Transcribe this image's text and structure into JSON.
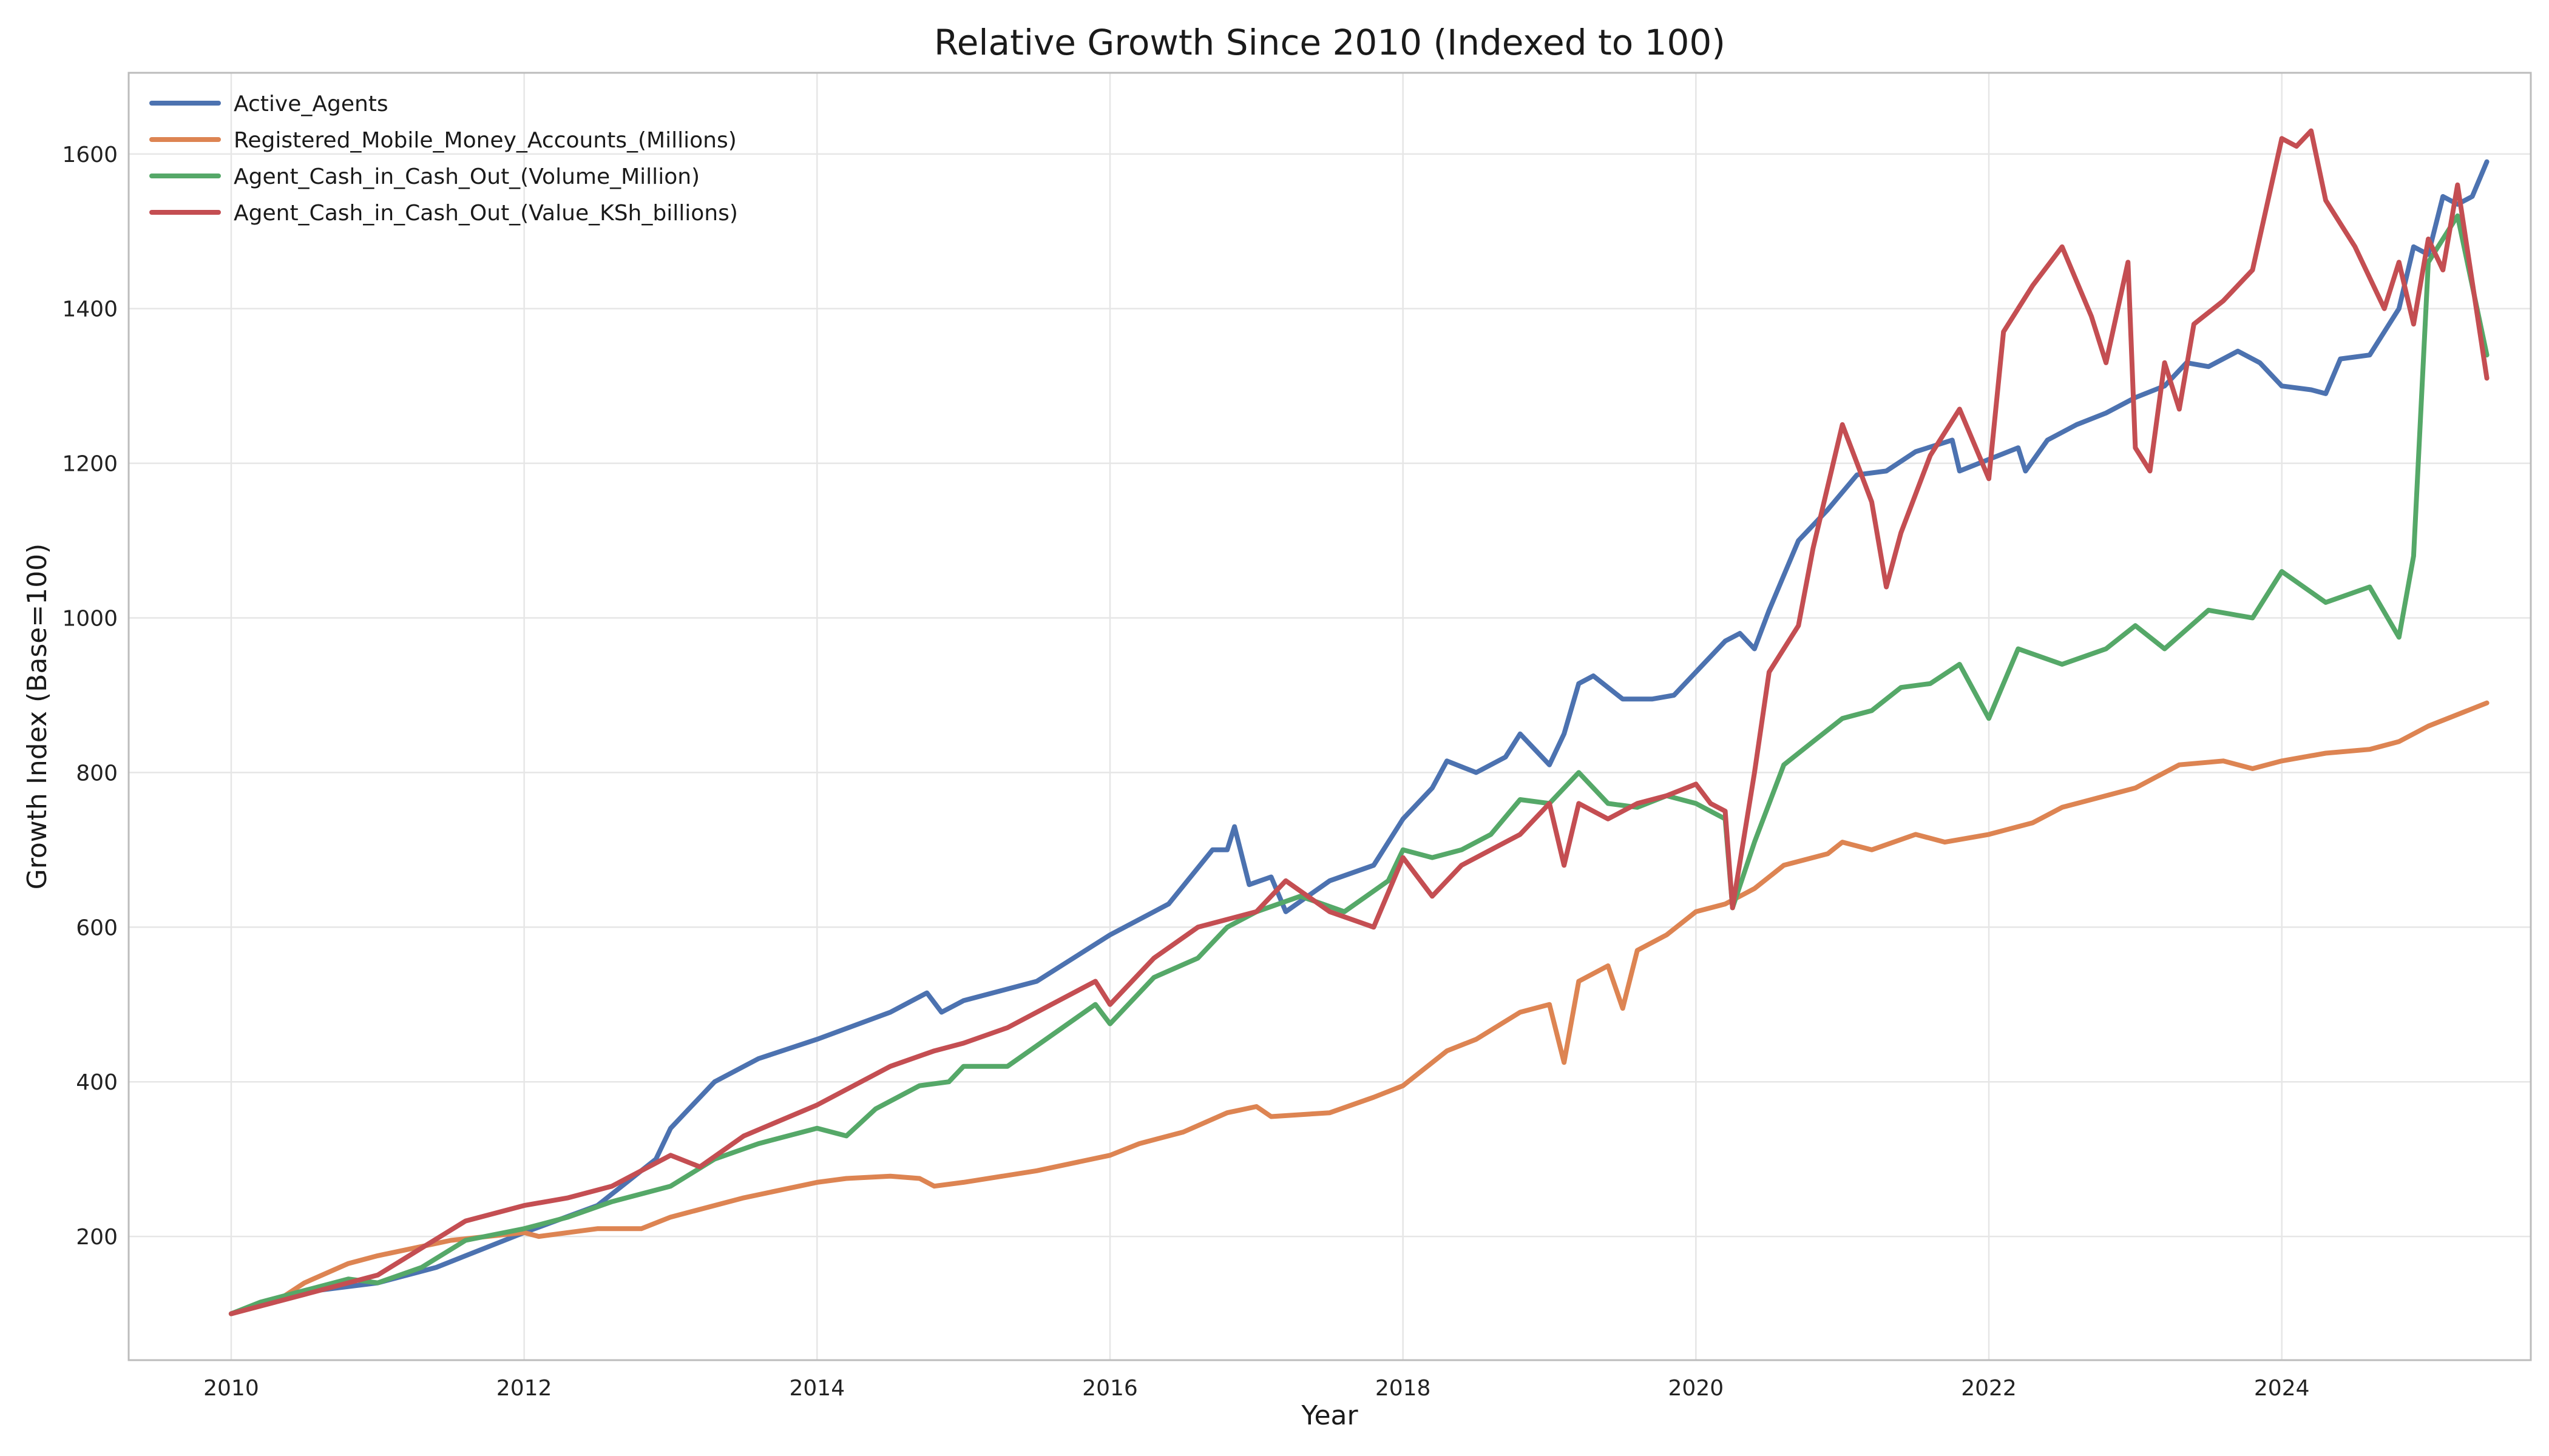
{
  "chart_data": {
    "type": "line",
    "title": "Relative Growth Since 2010 (Indexed to 100)",
    "xlabel": "Year",
    "ylabel": "Growth Index (Base=100)",
    "xlim": [
      2009.3,
      2025.7
    ],
    "ylim": [
      40,
      1705
    ],
    "x_ticks": [
      2010,
      2012,
      2014,
      2016,
      2018,
      2020,
      2022,
      2024
    ],
    "y_ticks": [
      200,
      400,
      600,
      800,
      1000,
      1200,
      1400,
      1600
    ],
    "grid": true,
    "legend_position": "top-left",
    "series": [
      {
        "name": "Active_Agents",
        "color": "#4c72b0",
        "points": [
          [
            2010.0,
            100
          ],
          [
            2010.5,
            128
          ],
          [
            2011.0,
            140
          ],
          [
            2011.4,
            160
          ],
          [
            2011.8,
            190
          ],
          [
            2012.0,
            205
          ],
          [
            2012.5,
            240
          ],
          [
            2012.9,
            300
          ],
          [
            2013.0,
            340
          ],
          [
            2013.3,
            400
          ],
          [
            2013.6,
            430
          ],
          [
            2014.0,
            455
          ],
          [
            2014.5,
            490
          ],
          [
            2014.75,
            515
          ],
          [
            2014.85,
            490
          ],
          [
            2015.0,
            505
          ],
          [
            2015.5,
            530
          ],
          [
            2016.0,
            590
          ],
          [
            2016.4,
            630
          ],
          [
            2016.7,
            700
          ],
          [
            2016.8,
            700
          ],
          [
            2016.85,
            730
          ],
          [
            2016.95,
            655
          ],
          [
            2017.1,
            665
          ],
          [
            2017.2,
            620
          ],
          [
            2017.5,
            660
          ],
          [
            2017.8,
            680
          ],
          [
            2018.0,
            740
          ],
          [
            2018.2,
            780
          ],
          [
            2018.3,
            815
          ],
          [
            2018.5,
            800
          ],
          [
            2018.7,
            820
          ],
          [
            2018.8,
            850
          ],
          [
            2019.0,
            810
          ],
          [
            2019.1,
            850
          ],
          [
            2019.2,
            915
          ],
          [
            2019.3,
            925
          ],
          [
            2019.5,
            895
          ],
          [
            2019.7,
            895
          ],
          [
            2019.85,
            900
          ],
          [
            2020.0,
            930
          ],
          [
            2020.2,
            970
          ],
          [
            2020.3,
            980
          ],
          [
            2020.4,
            960
          ],
          [
            2020.5,
            1010
          ],
          [
            2020.7,
            1100
          ],
          [
            2020.9,
            1140
          ],
          [
            2021.1,
            1185
          ],
          [
            2021.3,
            1190
          ],
          [
            2021.5,
            1215
          ],
          [
            2021.75,
            1230
          ],
          [
            2021.8,
            1190
          ],
          [
            2022.0,
            1205
          ],
          [
            2022.2,
            1220
          ],
          [
            2022.25,
            1190
          ],
          [
            2022.4,
            1230
          ],
          [
            2022.6,
            1250
          ],
          [
            2022.8,
            1265
          ],
          [
            2023.0,
            1285
          ],
          [
            2023.2,
            1300
          ],
          [
            2023.35,
            1330
          ],
          [
            2023.5,
            1325
          ],
          [
            2023.7,
            1345
          ],
          [
            2023.85,
            1330
          ],
          [
            2024.0,
            1300
          ],
          [
            2024.2,
            1295
          ],
          [
            2024.3,
            1290
          ],
          [
            2024.4,
            1335
          ],
          [
            2024.6,
            1340
          ],
          [
            2024.8,
            1400
          ],
          [
            2024.9,
            1480
          ],
          [
            2025.0,
            1470
          ],
          [
            2025.1,
            1545
          ],
          [
            2025.2,
            1535
          ],
          [
            2025.3,
            1545
          ],
          [
            2025.4,
            1590
          ]
        ]
      },
      {
        "name": "Registered_Mobile_Money_Accounts_(Millions)",
        "color": "#dd8452",
        "points": [
          [
            2010.0,
            100
          ],
          [
            2010.3,
            115
          ],
          [
            2010.5,
            140
          ],
          [
            2010.8,
            165
          ],
          [
            2011.0,
            175
          ],
          [
            2011.5,
            195
          ],
          [
            2012.0,
            205
          ],
          [
            2012.1,
            200
          ],
          [
            2012.5,
            210
          ],
          [
            2012.8,
            210
          ],
          [
            2013.0,
            225
          ],
          [
            2013.5,
            250
          ],
          [
            2014.0,
            270
          ],
          [
            2014.2,
            275
          ],
          [
            2014.5,
            278
          ],
          [
            2014.7,
            275
          ],
          [
            2014.8,
            265
          ],
          [
            2015.0,
            270
          ],
          [
            2015.5,
            285
          ],
          [
            2016.0,
            305
          ],
          [
            2016.2,
            320
          ],
          [
            2016.5,
            335
          ],
          [
            2016.8,
            360
          ],
          [
            2017.0,
            368
          ],
          [
            2017.1,
            355
          ],
          [
            2017.5,
            360
          ],
          [
            2017.8,
            380
          ],
          [
            2018.0,
            395
          ],
          [
            2018.3,
            440
          ],
          [
            2018.5,
            455
          ],
          [
            2018.8,
            490
          ],
          [
            2019.0,
            500
          ],
          [
            2019.1,
            425
          ],
          [
            2019.2,
            530
          ],
          [
            2019.4,
            550
          ],
          [
            2019.5,
            495
          ],
          [
            2019.6,
            570
          ],
          [
            2019.8,
            590
          ],
          [
            2020.0,
            620
          ],
          [
            2020.2,
            630
          ],
          [
            2020.4,
            650
          ],
          [
            2020.6,
            680
          ],
          [
            2020.9,
            695
          ],
          [
            2021.0,
            710
          ],
          [
            2021.2,
            700
          ],
          [
            2021.5,
            720
          ],
          [
            2021.7,
            710
          ],
          [
            2022.0,
            720
          ],
          [
            2022.3,
            735
          ],
          [
            2022.5,
            755
          ],
          [
            2022.8,
            770
          ],
          [
            2023.0,
            780
          ],
          [
            2023.3,
            810
          ],
          [
            2023.6,
            815
          ],
          [
            2023.8,
            805
          ],
          [
            2024.0,
            815
          ],
          [
            2024.3,
            825
          ],
          [
            2024.6,
            830
          ],
          [
            2024.8,
            840
          ],
          [
            2025.0,
            860
          ],
          [
            2025.4,
            890
          ]
        ]
      },
      {
        "name": "Agent_Cash_in_Cash_Out_(Volume_Million)",
        "color": "#55a868",
        "points": [
          [
            2010.0,
            100
          ],
          [
            2010.2,
            115
          ],
          [
            2010.5,
            130
          ],
          [
            2010.8,
            145
          ],
          [
            2011.0,
            140
          ],
          [
            2011.3,
            160
          ],
          [
            2011.6,
            195
          ],
          [
            2012.0,
            210
          ],
          [
            2012.3,
            225
          ],
          [
            2012.6,
            245
          ],
          [
            2013.0,
            265
          ],
          [
            2013.3,
            300
          ],
          [
            2013.6,
            320
          ],
          [
            2014.0,
            340
          ],
          [
            2014.2,
            330
          ],
          [
            2014.4,
            365
          ],
          [
            2014.7,
            395
          ],
          [
            2014.9,
            400
          ],
          [
            2015.0,
            420
          ],
          [
            2015.3,
            420
          ],
          [
            2015.6,
            460
          ],
          [
            2015.9,
            500
          ],
          [
            2016.0,
            475
          ],
          [
            2016.3,
            535
          ],
          [
            2016.6,
            560
          ],
          [
            2016.8,
            600
          ],
          [
            2017.0,
            620
          ],
          [
            2017.3,
            640
          ],
          [
            2017.6,
            620
          ],
          [
            2017.9,
            660
          ],
          [
            2018.0,
            700
          ],
          [
            2018.2,
            690
          ],
          [
            2018.4,
            700
          ],
          [
            2018.6,
            720
          ],
          [
            2018.8,
            765
          ],
          [
            2019.0,
            760
          ],
          [
            2019.2,
            800
          ],
          [
            2019.4,
            760
          ],
          [
            2019.6,
            755
          ],
          [
            2019.8,
            770
          ],
          [
            2020.0,
            760
          ],
          [
            2020.2,
            740
          ],
          [
            2020.25,
            625
          ],
          [
            2020.4,
            710
          ],
          [
            2020.6,
            810
          ],
          [
            2020.8,
            840
          ],
          [
            2021.0,
            870
          ],
          [
            2021.2,
            880
          ],
          [
            2021.4,
            910
          ],
          [
            2021.6,
            915
          ],
          [
            2021.8,
            940
          ],
          [
            2022.0,
            870
          ],
          [
            2022.2,
            960
          ],
          [
            2022.5,
            940
          ],
          [
            2022.8,
            960
          ],
          [
            2023.0,
            990
          ],
          [
            2023.2,
            960
          ],
          [
            2023.5,
            1010
          ],
          [
            2023.8,
            1000
          ],
          [
            2024.0,
            1060
          ],
          [
            2024.3,
            1020
          ],
          [
            2024.6,
            1040
          ],
          [
            2024.8,
            975
          ],
          [
            2024.9,
            1080
          ],
          [
            2025.0,
            1460
          ],
          [
            2025.2,
            1520
          ],
          [
            2025.4,
            1340
          ]
        ]
      },
      {
        "name": "Agent_Cash_in_Cash_Out_(Value_KSh_billions)",
        "color": "#c44e52",
        "points": [
          [
            2010.0,
            100
          ],
          [
            2010.5,
            125
          ],
          [
            2011.0,
            150
          ],
          [
            2011.3,
            185
          ],
          [
            2011.6,
            220
          ],
          [
            2012.0,
            240
          ],
          [
            2012.3,
            250
          ],
          [
            2012.6,
            265
          ],
          [
            2013.0,
            305
          ],
          [
            2013.2,
            290
          ],
          [
            2013.5,
            330
          ],
          [
            2014.0,
            370
          ],
          [
            2014.2,
            390
          ],
          [
            2014.5,
            420
          ],
          [
            2014.8,
            440
          ],
          [
            2015.0,
            450
          ],
          [
            2015.3,
            470
          ],
          [
            2015.6,
            500
          ],
          [
            2015.9,
            530
          ],
          [
            2016.0,
            500
          ],
          [
            2016.3,
            560
          ],
          [
            2016.6,
            600
          ],
          [
            2016.8,
            610
          ],
          [
            2017.0,
            620
          ],
          [
            2017.2,
            660
          ],
          [
            2017.5,
            620
          ],
          [
            2017.8,
            600
          ],
          [
            2018.0,
            690
          ],
          [
            2018.2,
            640
          ],
          [
            2018.4,
            680
          ],
          [
            2018.6,
            700
          ],
          [
            2018.8,
            720
          ],
          [
            2019.0,
            760
          ],
          [
            2019.1,
            680
          ],
          [
            2019.2,
            760
          ],
          [
            2019.4,
            740
          ],
          [
            2019.6,
            760
          ],
          [
            2019.8,
            770
          ],
          [
            2020.0,
            785
          ],
          [
            2020.1,
            760
          ],
          [
            2020.2,
            750
          ],
          [
            2020.25,
            625
          ],
          [
            2020.4,
            800
          ],
          [
            2020.5,
            930
          ],
          [
            2020.7,
            990
          ],
          [
            2020.8,
            1090
          ],
          [
            2021.0,
            1250
          ],
          [
            2021.2,
            1150
          ],
          [
            2021.3,
            1040
          ],
          [
            2021.4,
            1110
          ],
          [
            2021.6,
            1210
          ],
          [
            2021.8,
            1270
          ],
          [
            2022.0,
            1180
          ],
          [
            2022.1,
            1370
          ],
          [
            2022.3,
            1430
          ],
          [
            2022.5,
            1480
          ],
          [
            2022.7,
            1390
          ],
          [
            2022.8,
            1330
          ],
          [
            2022.95,
            1460
          ],
          [
            2023.0,
            1220
          ],
          [
            2023.1,
            1190
          ],
          [
            2023.2,
            1330
          ],
          [
            2023.3,
            1270
          ],
          [
            2023.4,
            1380
          ],
          [
            2023.6,
            1410
          ],
          [
            2023.8,
            1450
          ],
          [
            2024.0,
            1620
          ],
          [
            2024.1,
            1610
          ],
          [
            2024.2,
            1630
          ],
          [
            2024.3,
            1540
          ],
          [
            2024.5,
            1480
          ],
          [
            2024.7,
            1400
          ],
          [
            2024.8,
            1460
          ],
          [
            2024.9,
            1380
          ],
          [
            2025.0,
            1490
          ],
          [
            2025.1,
            1450
          ],
          [
            2025.2,
            1560
          ],
          [
            2025.4,
            1310
          ]
        ]
      }
    ]
  }
}
